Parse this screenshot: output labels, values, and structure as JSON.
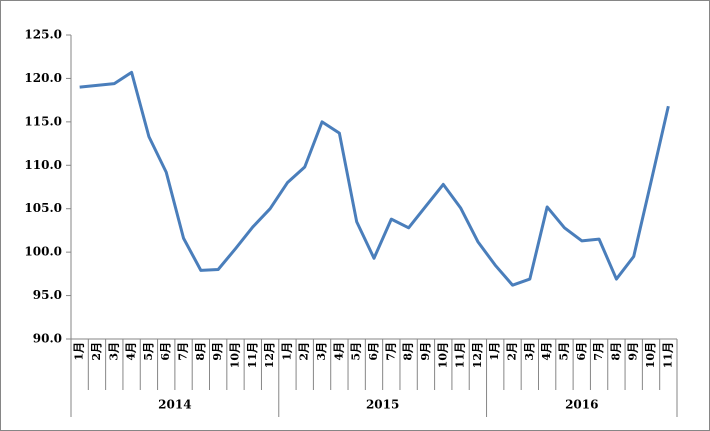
{
  "chart_data": {
    "type": "line",
    "groups": [
      {
        "label": "2014",
        "categories": [
          "1月",
          "2月",
          "3月",
          "4月",
          "5月",
          "6月",
          "7月",
          "8月",
          "9月",
          "10月",
          "11月",
          "12月"
        ]
      },
      {
        "label": "2015",
        "categories": [
          "1月",
          "2月",
          "3月",
          "4月",
          "5月",
          "6月",
          "7月",
          "8月",
          "9月",
          "10月",
          "11月",
          "12月"
        ]
      },
      {
        "label": "2016",
        "categories": [
          "1月",
          "2月",
          "3月",
          "4月",
          "5月",
          "6月",
          "7月",
          "8月",
          "9月",
          "10月",
          "11月"
        ]
      }
    ],
    "values": [
      119.0,
      119.2,
      119.4,
      120.7,
      113.3,
      109.2,
      101.6,
      97.9,
      98.0,
      100.4,
      102.9,
      105.0,
      108.0,
      109.8,
      115.0,
      113.7,
      103.5,
      99.3,
      103.8,
      102.8,
      105.3,
      107.8,
      105.1,
      101.2,
      98.5,
      96.2,
      96.9,
      105.2,
      102.8,
      101.3,
      101.5,
      96.9,
      99.5,
      108.1,
      116.8
    ],
    "color": "#4a7ebb",
    "ylim": [
      90,
      125
    ],
    "yticks": [
      {
        "value": 90,
        "label": "90.0"
      },
      {
        "value": 95,
        "label": "95.0"
      },
      {
        "value": 100,
        "label": "100.0"
      },
      {
        "value": 105,
        "label": "105.0"
      },
      {
        "value": 110,
        "label": "110.0"
      },
      {
        "value": 115,
        "label": "115.0"
      },
      {
        "value": 120,
        "label": "120.0"
      },
      {
        "value": 125,
        "label": "125.0"
      }
    ],
    "grid": false
  }
}
